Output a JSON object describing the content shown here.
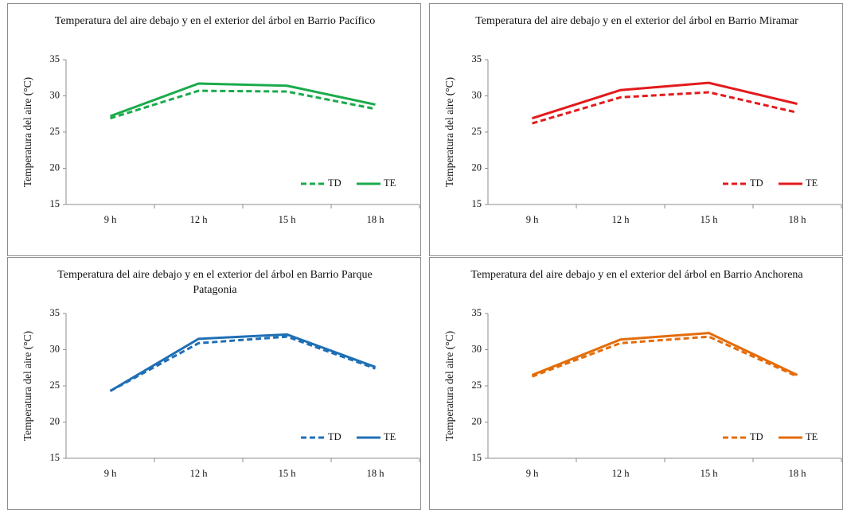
{
  "chart_data": [
    {
      "type": "line",
      "title": "Temperatura del aire debajo y en el exterior del árbol en Barrio Pacífico",
      "y_label": "Temperatura del aire (°C)",
      "categories": [
        "9 h",
        "12 h",
        "15 h",
        "18 h"
      ],
      "ylim": [
        15,
        35
      ],
      "yticks": [
        15,
        20,
        25,
        30,
        35
      ],
      "series": [
        {
          "name": "TD",
          "color": "#1aab4b",
          "line_style": "dashed",
          "values": [
            26.9,
            30.7,
            30.6,
            28.2
          ]
        },
        {
          "name": "TE",
          "color": "#1aab4b",
          "line_style": "solid",
          "values": [
            27.2,
            31.7,
            31.4,
            28.8
          ]
        }
      ]
    },
    {
      "type": "line",
      "title": "Temperatura del aire debajo y en el exterior del árbol en Barrio Miramar",
      "y_label": "Temperatura del aire (°C)",
      "categories": [
        "9 h",
        "12 h",
        "15 h",
        "18 h"
      ],
      "ylim": [
        15,
        35
      ],
      "yticks": [
        15,
        20,
        25,
        30,
        35
      ],
      "series": [
        {
          "name": "TD",
          "color": "#e31a1c",
          "line_style": "dashed",
          "values": [
            26.2,
            29.8,
            30.5,
            27.7
          ]
        },
        {
          "name": "TE",
          "color": "#e31a1c",
          "line_style": "solid",
          "values": [
            26.9,
            30.8,
            31.8,
            28.9
          ]
        }
      ]
    },
    {
      "type": "line",
      "title": "Temperatura del aire debajo y en el exterior del árbol en Barrio Parque Patagonia",
      "y_label": "Temperatura del aire (°C)",
      "categories": [
        "9 h",
        "12 h",
        "15 h",
        "18 h"
      ],
      "ylim": [
        15,
        35
      ],
      "yticks": [
        15,
        20,
        25,
        30,
        35
      ],
      "series": [
        {
          "name": "TD",
          "color": "#1f6fb5",
          "line_style": "dashed",
          "values": [
            24.3,
            30.9,
            31.8,
            27.4
          ]
        },
        {
          "name": "TE",
          "color": "#1f6fb5",
          "line_style": "solid",
          "values": [
            24.3,
            31.5,
            32.1,
            27.6
          ]
        }
      ]
    },
    {
      "type": "line",
      "title": "Temperatura del aire debajo y en el exterior del árbol en Barrio Anchorena",
      "y_label": "Temperatura del aire (°C)",
      "categories": [
        "9 h",
        "12 h",
        "15 h",
        "18 h"
      ],
      "ylim": [
        15,
        35
      ],
      "yticks": [
        15,
        20,
        25,
        30,
        35
      ],
      "series": [
        {
          "name": "TD",
          "color": "#e36c0a",
          "line_style": "dashed",
          "values": [
            26.3,
            30.9,
            31.8,
            26.3
          ]
        },
        {
          "name": "TE",
          "color": "#e36c0a",
          "line_style": "solid",
          "values": [
            26.5,
            31.4,
            32.3,
            26.5
          ]
        }
      ]
    }
  ]
}
